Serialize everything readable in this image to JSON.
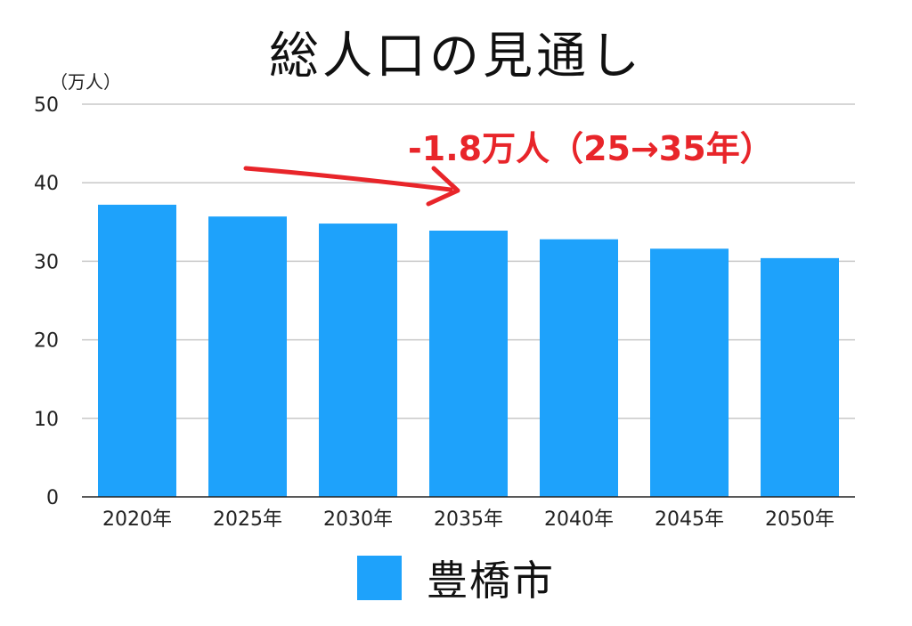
{
  "chart_data": {
    "type": "bar",
    "title": "総人口の見通し",
    "y_unit": "（万人）",
    "categories": [
      "2020年",
      "2025年",
      "2030年",
      "2035年",
      "2040年",
      "2045年",
      "2050年"
    ],
    "series": [
      {
        "name": "豊橋市",
        "values": [
          37.2,
          35.7,
          34.8,
          33.9,
          32.8,
          31.6,
          30.4
        ],
        "color": "#1ea2fb"
      }
    ],
    "ylim": [
      0,
      50
    ],
    "yticks": [
      0,
      10,
      20,
      30,
      40,
      50
    ],
    "grid": true,
    "legend": "bottom",
    "annotation": {
      "text": "-1.8万人（25→35年）",
      "color": "#e8252a",
      "arrow": "from 2025年 toward 2035年"
    }
  }
}
